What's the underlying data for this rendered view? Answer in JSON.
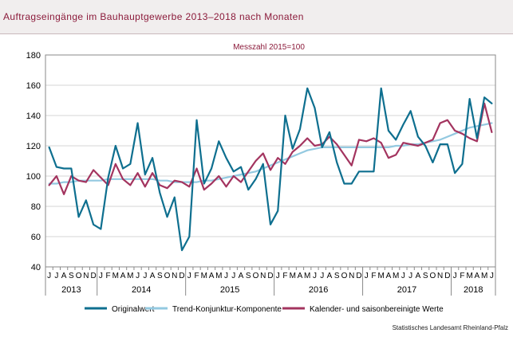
{
  "title": "Auftragseingänge im Bauhauptgewerbe 2013–2018 nach Monaten",
  "source": "Statistisches Landesamt Rheinland-Pfalz",
  "colors": {
    "title": "#8b1a3a",
    "original": "#0e6f8f",
    "trend": "#93c9e0",
    "seasonal": "#a3345f"
  },
  "chart_data": {
    "type": "line",
    "subtitle": "Messzahl 2015=100",
    "ylim": [
      40,
      180
    ],
    "yticks": [
      40,
      60,
      80,
      100,
      120,
      140,
      160,
      180
    ],
    "grid": true,
    "legend_position": "bottom",
    "month_labels": [
      "J",
      "J",
      "A",
      "S",
      "O",
      "N",
      "D",
      "J",
      "F",
      "M",
      "A",
      "M",
      "J",
      "J",
      "A",
      "S",
      "O",
      "N",
      "D",
      "J",
      "F",
      "M",
      "A",
      "M",
      "J",
      "J",
      "A",
      "S",
      "O",
      "N",
      "D",
      "J",
      "F",
      "M",
      "A",
      "M",
      "J",
      "J",
      "A",
      "S",
      "O",
      "N",
      "D",
      "J",
      "F",
      "M",
      "A",
      "M",
      "J",
      "J",
      "A",
      "S",
      "O",
      "N",
      "D",
      "J",
      "F",
      "M",
      "A",
      "M",
      "J"
    ],
    "year_labels": [
      {
        "label": "2013",
        "start": 0,
        "end": 6
      },
      {
        "label": "2014",
        "start": 7,
        "end": 18
      },
      {
        "label": "2015",
        "start": 19,
        "end": 30
      },
      {
        "label": "2016",
        "start": 31,
        "end": 42
      },
      {
        "label": "2017",
        "start": 43,
        "end": 54
      },
      {
        "label": "2018",
        "start": 55,
        "end": 60
      }
    ],
    "series": [
      {
        "name": "Originalwert",
        "color": "#0e6f8f",
        "values": [
          119,
          106,
          105,
          105,
          73,
          84,
          68,
          65,
          99,
          120,
          105,
          108,
          135,
          101,
          112,
          89,
          73,
          86,
          51,
          60,
          137,
          95,
          105,
          123,
          112,
          103,
          106,
          91,
          98,
          108,
          68,
          77,
          140,
          118,
          131,
          158,
          145,
          119,
          129,
          109,
          95,
          95,
          103,
          103,
          103,
          158,
          130,
          124,
          134,
          143,
          126,
          120,
          109,
          121,
          121,
          102,
          108,
          151,
          125,
          152,
          148
        ]
      },
      {
        "name": "Trend-Konjunktur-Komponente",
        "color": "#93c9e0",
        "values": [
          95,
          95,
          96,
          96,
          97,
          97,
          97,
          97,
          98,
          98,
          98,
          98,
          98,
          98,
          98,
          97,
          97,
          96,
          96,
          96,
          96,
          97,
          97,
          98,
          99,
          100,
          101,
          102,
          103,
          105,
          107,
          109,
          111,
          113,
          115,
          117,
          118,
          119,
          119,
          119,
          119,
          119,
          119,
          119,
          119,
          119,
          119,
          120,
          120,
          121,
          121,
          122,
          123,
          124,
          126,
          128,
          130,
          132,
          133,
          134,
          135
        ]
      },
      {
        "name": "Kalender- und saisonbereinigte Werte",
        "color": "#a3345f",
        "values": [
          94,
          100,
          88,
          100,
          97,
          96,
          104,
          99,
          94,
          108,
          98,
          94,
          102,
          93,
          102,
          94,
          92,
          97,
          96,
          93,
          105,
          91,
          95,
          100,
          93,
          100,
          96,
          103,
          110,
          115,
          104,
          112,
          108,
          116,
          120,
          125,
          120,
          121,
          126,
          121,
          114,
          107,
          124,
          123,
          125,
          122,
          112,
          114,
          122,
          121,
          120,
          122,
          124,
          135,
          137,
          130,
          128,
          125,
          123,
          148,
          129
        ]
      }
    ]
  }
}
